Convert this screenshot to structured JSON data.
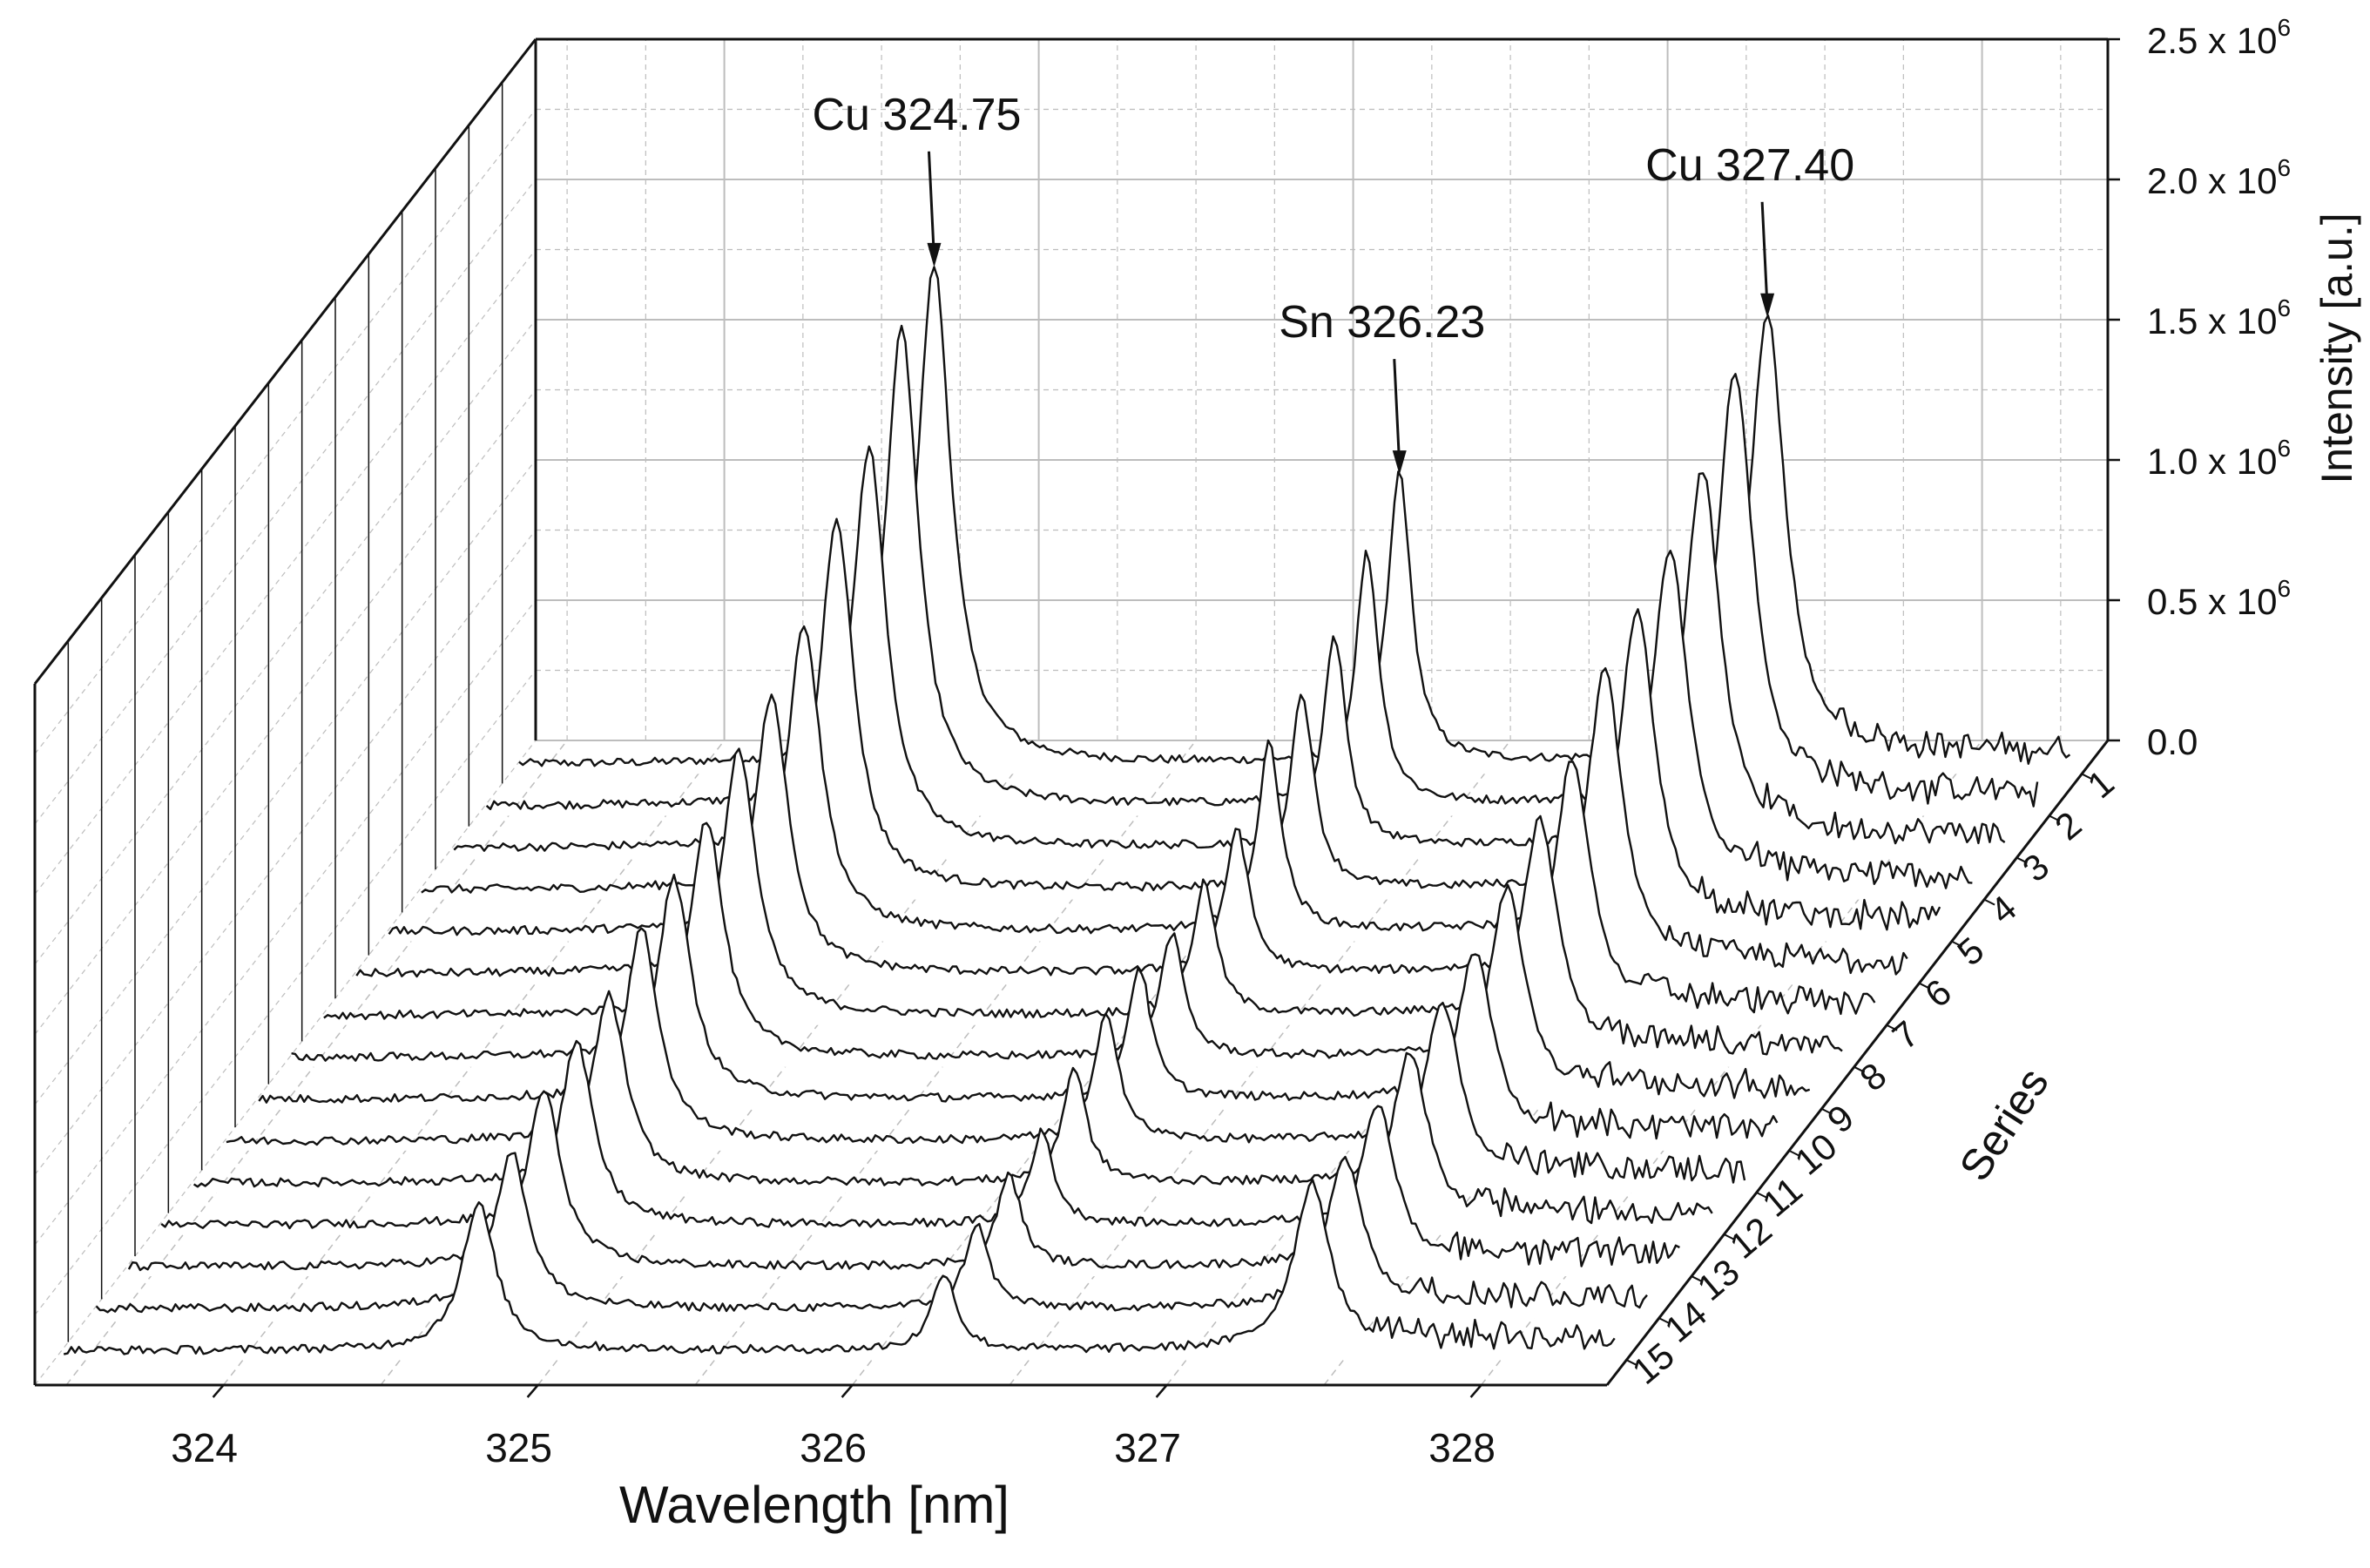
{
  "chart_data": {
    "type": "line",
    "subtype": "3d-waterfall",
    "xlabel": "Wavelength [nm]",
    "ylabel": "Series",
    "zlabel": "Intensity [a.u.]",
    "xlim": [
      323.4,
      328.4
    ],
    "x_ticks": [
      "324",
      "325",
      "326",
      "327",
      "328"
    ],
    "zlim": [
      0,
      2500000
    ],
    "z_ticks": [
      {
        "value": 0,
        "mantissa": "0.0",
        "power": ""
      },
      {
        "value": 500000,
        "mantissa": "0.5 x 10",
        "power": "6"
      },
      {
        "value": 1000000,
        "mantissa": "1.0 x 10",
        "power": "6"
      },
      {
        "value": 1500000,
        "mantissa": "1.5 x 10",
        "power": "6"
      },
      {
        "value": 2000000,
        "mantissa": "2.0 x 10",
        "power": "6"
      },
      {
        "value": 2500000,
        "mantissa": "2.5 x 10",
        "power": "6"
      }
    ],
    "series_labels": [
      "1",
      "2",
      "3",
      "4",
      "5",
      "6",
      "7",
      "8",
      "9",
      "10",
      "11",
      "12",
      "13",
      "14",
      "15"
    ],
    "grid": true,
    "line_color": "#111111",
    "fill_color": "#ffffff",
    "grid_color": "#bdbdbd",
    "annotations": [
      {
        "text": "Cu 324.75",
        "x": 324.75,
        "series": "1",
        "z": 1800000
      },
      {
        "text": "Sn 326.23",
        "x": 326.23,
        "series": "1",
        "z": 1060000
      },
      {
        "text": "Cu 327.40",
        "x": 327.4,
        "series": "1",
        "z": 1620000
      }
    ],
    "peaks": [
      {
        "center": 324.75,
        "width": 0.065,
        "heights": [
          1780000,
          1700000,
          1430000,
          1330000,
          1100000,
          1000000,
          950000,
          850000,
          790000,
          760000,
          670000,
          650000,
          630000,
          560000,
          520000
        ]
      },
      {
        "center": 326.23,
        "width": 0.045,
        "heights": [
          1040000,
          900000,
          750000,
          700000,
          670000,
          520000,
          470000,
          440000,
          470000,
          460000,
          410000,
          330000,
          330000,
          300000,
          280000
        ]
      },
      {
        "center": 327.4,
        "width": 0.07,
        "heights": [
          1600000,
          1550000,
          1350000,
          1220000,
          1150000,
          1080000,
          920000,
          850000,
          750000,
          680000,
          650000,
          620000,
          580000,
          540000,
          600000
        ]
      }
    ]
  }
}
